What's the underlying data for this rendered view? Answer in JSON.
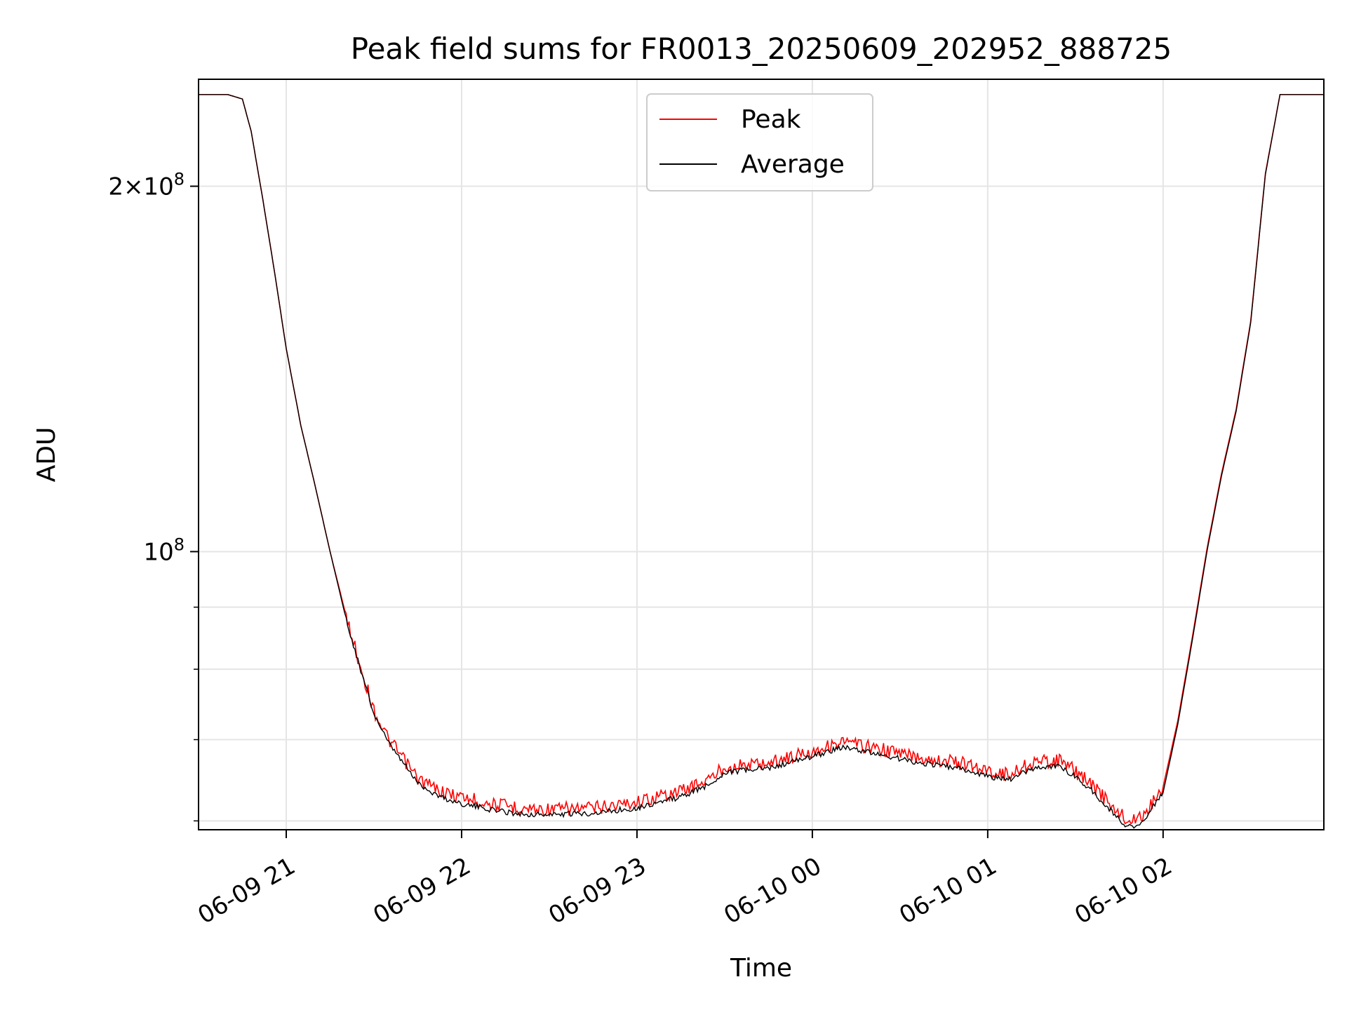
{
  "chart_data": {
    "type": "line",
    "title": "Peak field sums for FR0013_20250609_202952_888725",
    "xlabel": "Time",
    "ylabel": "ADU",
    "yscale": "log",
    "xlim": [
      "2025-06-09 20:30",
      "2025-06-10 02:55"
    ],
    "ylim": [
      59000000,
      245000000
    ],
    "x_ticks": [
      "2025-06-09 21:00",
      "2025-06-09 22:00",
      "2025-06-09 23:00",
      "2025-06-10 00:00",
      "2025-06-10 01:00",
      "2025-06-10 02:00"
    ],
    "x_tick_labels": [
      "06-09 21",
      "06-09 22",
      "06-09 23",
      "06-10 00",
      "06-10 01",
      "06-10 02"
    ],
    "y_major_ticks": [
      100000000,
      200000000
    ],
    "y_major_tick_labels": [
      "10^8",
      "2×10^8"
    ],
    "y_minor_ticks": [
      60000000,
      70000000,
      80000000,
      90000000
    ],
    "grid": true,
    "legend_position": "upper-center",
    "series": [
      {
        "name": "Peak",
        "color": "#ff0000",
        "x": [
          "2025-06-09 20:30",
          "2025-06-09 20:40",
          "2025-06-09 20:45",
          "2025-06-09 20:48",
          "2025-06-09 20:52",
          "2025-06-09 20:56",
          "2025-06-09 21:00",
          "2025-06-09 21:05",
          "2025-06-09 21:10",
          "2025-06-09 21:15",
          "2025-06-09 21:20",
          "2025-06-09 21:25",
          "2025-06-09 21:30",
          "2025-06-09 21:35",
          "2025-06-09 21:40",
          "2025-06-09 21:45",
          "2025-06-09 21:50",
          "2025-06-09 21:55",
          "2025-06-09 22:00",
          "2025-06-09 22:10",
          "2025-06-09 22:20",
          "2025-06-09 22:30",
          "2025-06-09 22:45",
          "2025-06-09 23:00",
          "2025-06-09 23:15",
          "2025-06-09 23:25",
          "2025-06-09 23:30",
          "2025-06-09 23:45",
          "2025-06-10 00:00",
          "2025-06-10 00:10",
          "2025-06-10 00:20",
          "2025-06-10 00:35",
          "2025-06-10 00:50",
          "2025-06-10 01:00",
          "2025-06-10 01:07",
          "2025-06-10 01:15",
          "2025-06-10 01:25",
          "2025-06-10 01:35",
          "2025-06-10 01:43",
          "2025-06-10 01:48",
          "2025-06-10 01:53",
          "2025-06-10 02:00",
          "2025-06-10 02:05",
          "2025-06-10 02:10",
          "2025-06-10 02:15",
          "2025-06-10 02:20",
          "2025-06-10 02:25",
          "2025-06-10 02:30",
          "2025-06-10 02:35",
          "2025-06-10 02:40",
          "2025-06-10 02:55"
        ],
        "y": [
          238000000,
          238000000,
          236000000,
          222000000,
          195000000,
          170000000,
          147000000,
          127000000,
          113000000,
          100000000,
          89500000,
          81000000,
          74000000,
          70000000,
          67500000,
          65000000,
          64000000,
          63200000,
          62800000,
          62000000,
          61500000,
          61300000,
          61500000,
          62200000,
          63500000,
          65000000,
          66500000,
          67000000,
          68500000,
          69700000,
          69000000,
          67800000,
          67000000,
          66000000,
          65500000,
          67000000,
          67300000,
          64500000,
          61500000,
          60000000,
          60500000,
          64000000,
          72500000,
          85000000,
          100500000,
          116000000,
          131000000,
          155000000,
          205000000,
          238000000,
          238000000
        ]
      },
      {
        "name": "Average",
        "color": "#000000",
        "x": [
          "2025-06-09 20:30",
          "2025-06-09 20:40",
          "2025-06-09 20:45",
          "2025-06-09 20:48",
          "2025-06-09 20:52",
          "2025-06-09 20:56",
          "2025-06-09 21:00",
          "2025-06-09 21:05",
          "2025-06-09 21:10",
          "2025-06-09 21:15",
          "2025-06-09 21:20",
          "2025-06-09 21:25",
          "2025-06-09 21:30",
          "2025-06-09 21:35",
          "2025-06-09 21:40",
          "2025-06-09 21:45",
          "2025-06-09 21:50",
          "2025-06-09 21:55",
          "2025-06-09 22:00",
          "2025-06-09 22:10",
          "2025-06-09 22:20",
          "2025-06-09 22:30",
          "2025-06-09 22:45",
          "2025-06-09 23:00",
          "2025-06-09 23:15",
          "2025-06-09 23:25",
          "2025-06-09 23:30",
          "2025-06-09 23:45",
          "2025-06-10 00:00",
          "2025-06-10 00:10",
          "2025-06-10 00:20",
          "2025-06-10 00:35",
          "2025-06-10 00:50",
          "2025-06-10 01:00",
          "2025-06-10 01:07",
          "2025-06-10 01:15",
          "2025-06-10 01:25",
          "2025-06-10 01:35",
          "2025-06-10 01:43",
          "2025-06-10 01:48",
          "2025-06-10 01:53",
          "2025-06-10 02:00",
          "2025-06-10 02:05",
          "2025-06-10 02:10",
          "2025-06-10 02:15",
          "2025-06-10 02:20",
          "2025-06-10 02:25",
          "2025-06-10 02:30",
          "2025-06-10 02:35",
          "2025-06-10 02:40",
          "2025-06-10 02:55"
        ],
        "y": [
          238000000,
          238000000,
          236000000,
          222000000,
          195000000,
          170000000,
          147000000,
          127000000,
          113000000,
          100000000,
          89000000,
          80500000,
          73500000,
          69500000,
          67000000,
          64500000,
          63300000,
          62500000,
          62000000,
          61300000,
          60800000,
          60700000,
          60900000,
          61500000,
          62800000,
          64300000,
          65800000,
          66300000,
          67800000,
          69000000,
          68300000,
          67100000,
          66300000,
          65300000,
          64800000,
          66300000,
          66600000,
          63800000,
          60800000,
          59300000,
          59800000,
          63300000,
          72000000,
          84500000,
          100000000,
          115500000,
          130500000,
          154500000,
          204500000,
          238000000,
          238000000
        ]
      }
    ]
  }
}
